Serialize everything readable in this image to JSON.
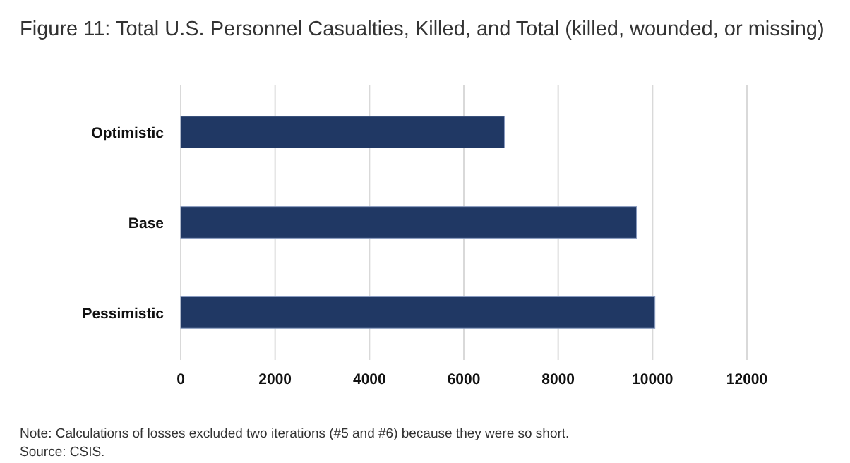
{
  "chart_data": {
    "type": "bar",
    "orientation": "horizontal",
    "title": "Figure 11: Total U.S. Personnel Casualties, Killed, and Total (killed, wounded, or missing)",
    "categories": [
      "Optimistic",
      "Base",
      "Pessimistic"
    ],
    "values": [
      6860,
      9660,
      10050
    ],
    "color": "#203864",
    "xlim": [
      0,
      12000
    ],
    "xticks": [
      0,
      2000,
      4000,
      6000,
      8000,
      10000,
      12000
    ],
    "grid": "x",
    "annotations": [
      "Note: Calculations of losses excluded two iterations (#5 and #6) because they were so short.",
      "Source: CSIS."
    ]
  }
}
